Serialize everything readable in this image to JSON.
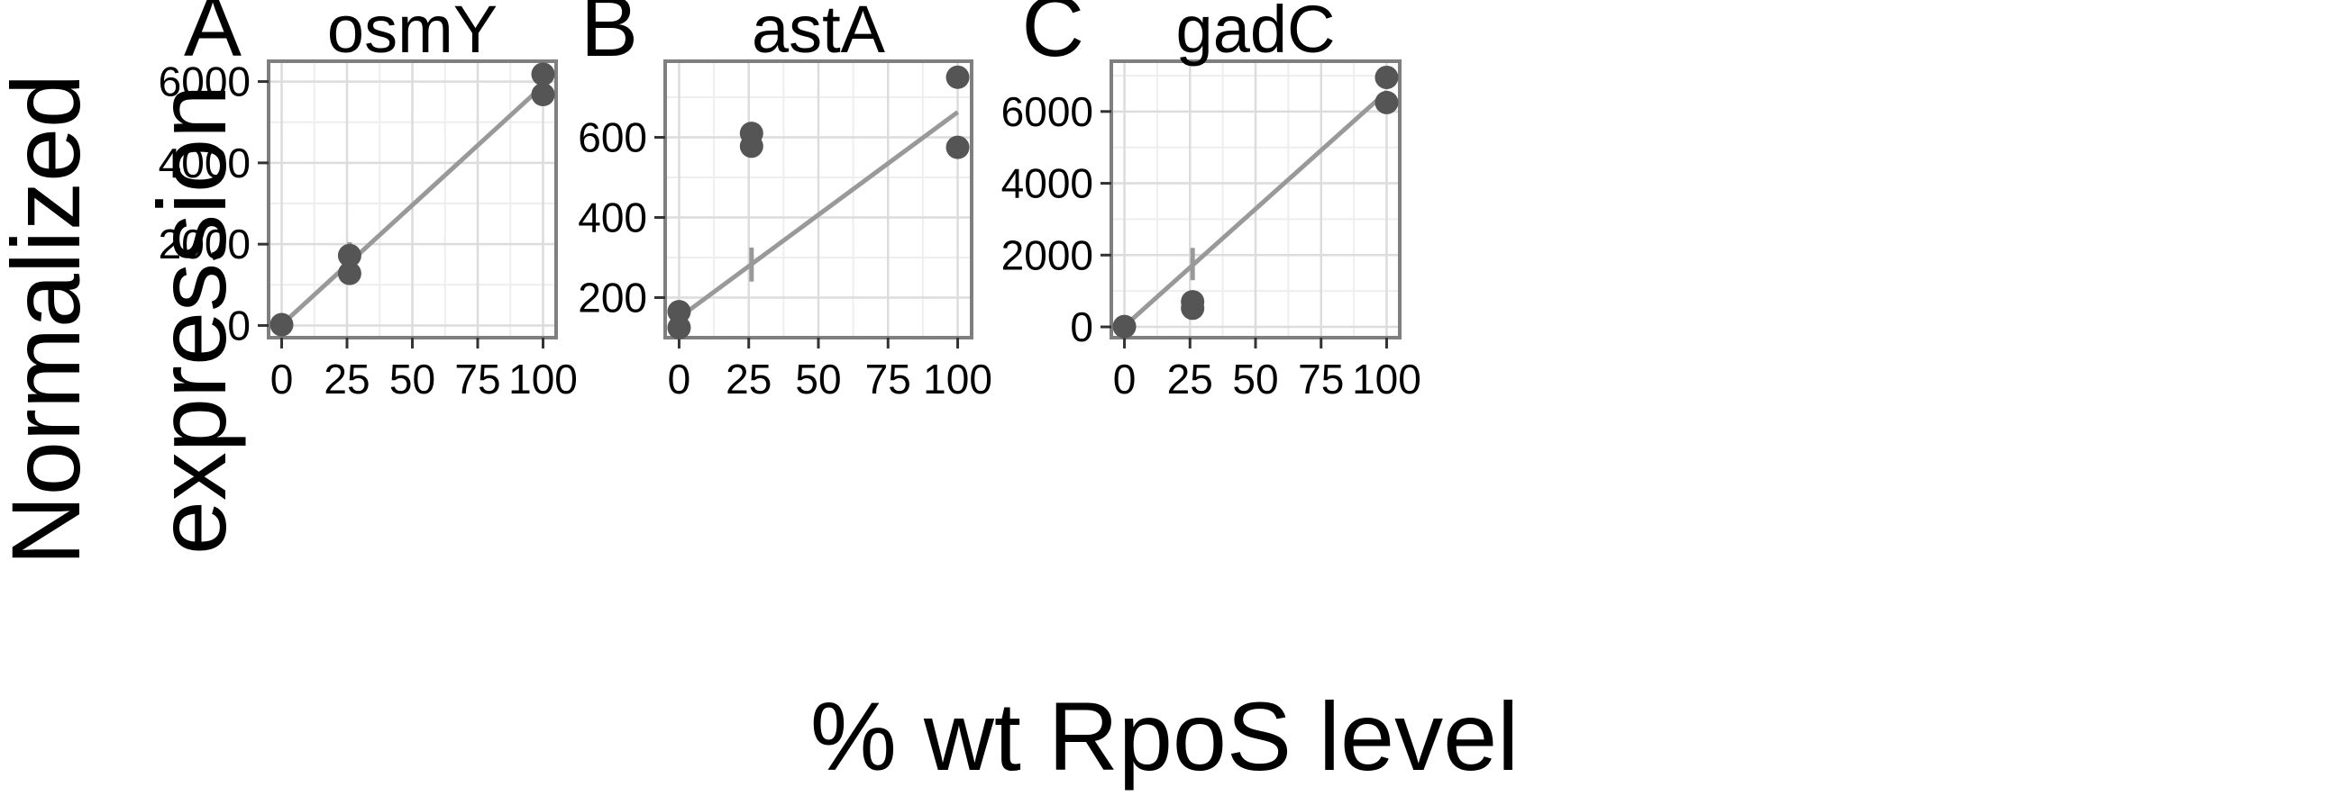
{
  "figure": {
    "ylabel_line1": "Normalized",
    "ylabel_line2": "expression",
    "xlabel": "% wt RpoS level"
  },
  "colors": {
    "point": "#555555",
    "line": "#999999",
    "grid_major": "#dcdcdc",
    "grid_minor": "#eeeeee",
    "panel_border": "#7f7f7f"
  },
  "chart_data": [
    {
      "type": "scatter",
      "panel_letter": "A",
      "title": "osmY",
      "x_ticks": [
        "0",
        "25",
        "50",
        "75",
        "100"
      ],
      "y_ticks": [
        "0",
        "2000",
        "4000",
        "6000"
      ],
      "xlim": [
        -5,
        105
      ],
      "ylim": [
        -300,
        6500
      ],
      "points": [
        {
          "x": 0,
          "y": 20
        },
        {
          "x": 26,
          "y": 1280
        },
        {
          "x": 26,
          "y": 1720
        },
        {
          "x": 100,
          "y": 5680
        },
        {
          "x": 100,
          "y": 6180
        }
      ],
      "fit_line": [
        {
          "x": 0,
          "y": 20
        },
        {
          "x": 100,
          "y": 5900
        }
      ],
      "error_bar": {
        "x": 26,
        "y_low": 1250,
        "y_high": 2050
      }
    },
    {
      "type": "scatter",
      "panel_letter": "B",
      "title": "astA",
      "x_ticks": [
        "0",
        "25",
        "50",
        "75",
        "100"
      ],
      "y_ticks": [
        "200",
        "400",
        "600"
      ],
      "xlim": [
        -5,
        105
      ],
      "ylim": [
        100,
        790
      ],
      "points": [
        {
          "x": 0,
          "y": 125
        },
        {
          "x": 0,
          "y": 165
        },
        {
          "x": 26,
          "y": 578
        },
        {
          "x": 26,
          "y": 610
        },
        {
          "x": 100,
          "y": 575
        },
        {
          "x": 100,
          "y": 750
        }
      ],
      "fit_line": [
        {
          "x": 0,
          "y": 150
        },
        {
          "x": 100,
          "y": 663
        }
      ],
      "error_bar": {
        "x": 26,
        "y_low": 240,
        "y_high": 325
      }
    },
    {
      "type": "scatter",
      "panel_letter": "C",
      "title": "gadC",
      "x_ticks": [
        "0",
        "25",
        "50",
        "75",
        "100"
      ],
      "y_ticks": [
        "0",
        "2000",
        "4000",
        "6000"
      ],
      "xlim": [
        -5,
        105
      ],
      "ylim": [
        -300,
        7400
      ],
      "points": [
        {
          "x": 0,
          "y": 10
        },
        {
          "x": 26,
          "y": 520
        },
        {
          "x": 26,
          "y": 700
        },
        {
          "x": 100,
          "y": 6250
        },
        {
          "x": 100,
          "y": 6950
        }
      ],
      "fit_line": [
        {
          "x": 0,
          "y": 20
        },
        {
          "x": 100,
          "y": 6550
        }
      ],
      "error_bar": {
        "x": 26,
        "y_low": 1300,
        "y_high": 2200
      }
    }
  ]
}
